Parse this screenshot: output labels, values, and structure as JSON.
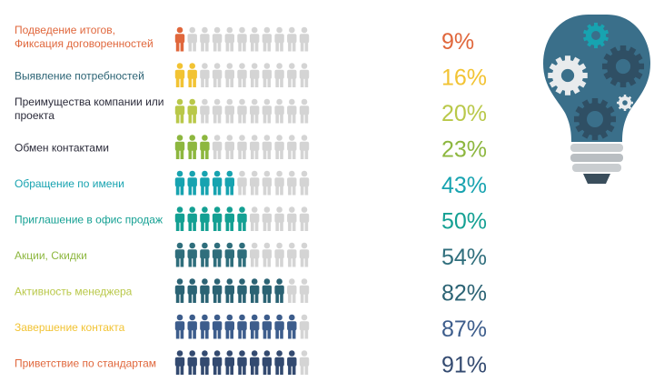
{
  "chart_data": {
    "type": "pictograph",
    "title": "",
    "icons_per_row": 11,
    "unit": "%",
    "rows": [
      {
        "label_lines": [
          "Подведение итогов,",
          "Фиксация договоренностей"
        ],
        "value": 9,
        "value_text": "9%",
        "color": "#e0673c"
      },
      {
        "label_lines": [
          "Выявление потребностей"
        ],
        "value": 16,
        "value_text": "16%",
        "color": "#f2c333"
      },
      {
        "label_lines": [
          "Преимущества компании или",
          "проекта"
        ],
        "value": 20,
        "value_text": "20%",
        "color": "#b9c849"
      },
      {
        "label_lines": [
          "Обмен контактами"
        ],
        "value": 23,
        "value_text": "23%",
        "color": "#8db73f"
      },
      {
        "label_lines": [
          "Обращение по имени"
        ],
        "value": 43,
        "value_text": "43%",
        "color": "#17a3b0"
      },
      {
        "label_lines": [
          "Приглашение в офис продаж"
        ],
        "value": 50,
        "value_text": "50%",
        "color": "#14a093"
      },
      {
        "label_lines": [
          "Акции, Скидки"
        ],
        "value": 54,
        "value_text": "54%",
        "color": "#2f6e7c"
      },
      {
        "label_lines": [
          "Активность менеджера"
        ],
        "value": 82,
        "value_text": "82%",
        "color": "#2b6374"
      },
      {
        "label_lines": [
          "Завершение контакта"
        ],
        "value": 87,
        "value_text": "87%",
        "color": "#3d5d8c"
      },
      {
        "label_lines": [
          "Приветствие по стандартам"
        ],
        "value": 91,
        "value_text": "91%",
        "color": "#334a70"
      }
    ],
    "label_colors": [
      "#e0673c",
      "#2b6374",
      "#2b2b3a",
      "#2b2b3a",
      "#17a3b0",
      "#14a093",
      "#8db73f",
      "#b9c849",
      "#f2c333",
      "#e0673c"
    ],
    "value_colors": [
      "#e0673c",
      "#f2c333",
      "#b9c849",
      "#8db73f",
      "#17a3b0",
      "#14a093",
      "#2f6e7c",
      "#2b6374",
      "#3d5d8c",
      "#334a70"
    ],
    "inactive_icon_color": "#d4d4d4"
  },
  "decor": {
    "illustration": "lightbulb-with-gears-icon",
    "bulb_color": "#3a6f8a",
    "gear_accent": "#17a3b0",
    "base_color": "#c9cdd0"
  }
}
